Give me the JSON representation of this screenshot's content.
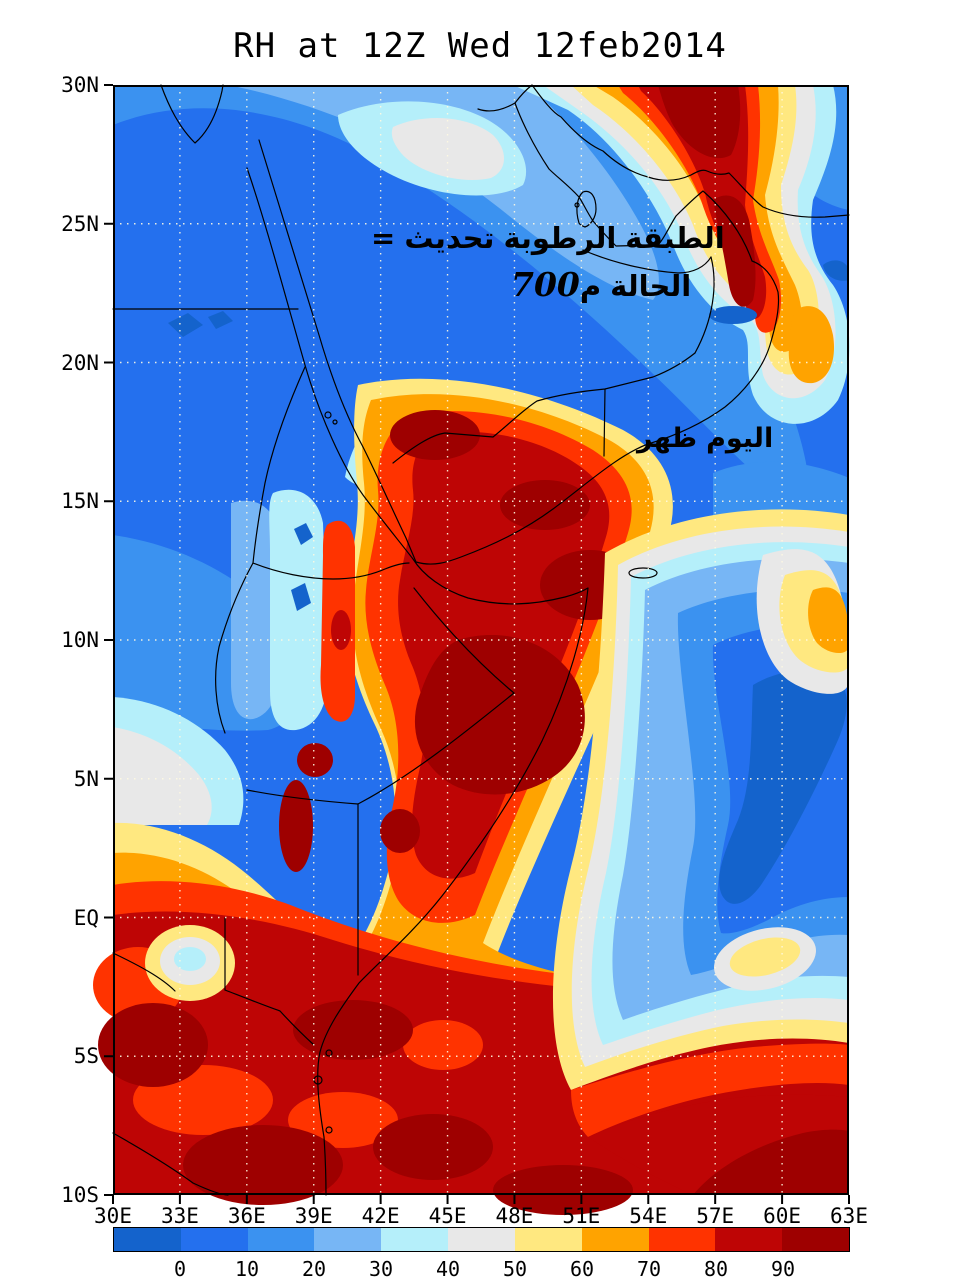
{
  "title": "RH at 12Z Wed 12feb2014",
  "annotations": {
    "line1": {
      "equals": "=",
      "words": [
        "تحديث",
        "الرطوبة",
        "الطبقة"
      ]
    },
    "line2": {
      "number": "700",
      "suffix": "م",
      "word": "الحالة"
    },
    "line3": {
      "words": [
        "ظهر",
        "اليوم"
      ]
    }
  },
  "axes": {
    "lat_labels": [
      "30N",
      "25N",
      "20N",
      "15N",
      "10N",
      "5N",
      "EQ",
      "5S",
      "10S"
    ],
    "lon_labels": [
      "30E",
      "33E",
      "36E",
      "39E",
      "42E",
      "45E",
      "48E",
      "51E",
      "54E",
      "57E",
      "60E",
      "63E"
    ]
  },
  "colorbar": {
    "labels": [
      "0",
      "10",
      "20",
      "30",
      "40",
      "50",
      "60",
      "70",
      "80",
      "90"
    ],
    "colors": [
      "#1463CC",
      "#2470EE",
      "#3B92F0",
      "#77B6F5",
      "#B5EFFA",
      "#E8E8E8",
      "#FFE880",
      "#FFA300",
      "#FF3300",
      "#BE0505",
      "#9E0000"
    ]
  },
  "chart_data": {
    "type": "heatmap",
    "title": "RH at 12Z Wed 12feb2014",
    "variable": "Relative humidity (%) filled contours over NE Africa / Arabian Peninsula / NW Indian Ocean",
    "x_axis": {
      "ticks": [
        "30E",
        "33E",
        "36E",
        "39E",
        "42E",
        "45E",
        "48E",
        "51E",
        "54E",
        "57E",
        "60E",
        "63E"
      ],
      "range_deg_east": [
        30,
        63
      ]
    },
    "y_axis": {
      "ticks": [
        "30N",
        "25N",
        "20N",
        "15N",
        "10N",
        "5N",
        "EQ",
        "5S",
        "10S"
      ],
      "range_deg_north": [
        -10,
        30
      ]
    },
    "contour_levels": [
      0,
      10,
      20,
      30,
      40,
      50,
      60,
      70,
      80,
      90
    ],
    "bins": [
      "<0",
      "0-10",
      "10-20",
      "20-30",
      "30-40",
      "40-50",
      "50-60",
      "60-70",
      "70-80",
      "80-90",
      ">90"
    ],
    "palette": [
      "#1463CC",
      "#2470EE",
      "#3B92F0",
      "#77B6F5",
      "#B5EFFA",
      "#E8E8E8",
      "#FFE880",
      "#FFA300",
      "#FF3300",
      "#BE0505",
      "#9E0000"
    ],
    "legend_position": "bottom horizontal colorbar",
    "grid": "dotted graticule every 3 deg lon / 5 deg lat",
    "features": [
      "RH 0-20 across the north (Egypt, Levant edge, northern Saudi Arabia, 20-30N)",
      "Band of RH 20-50 (light blue/cyan/white) stretching NW-SE over NE Egypt toward the Persian Gulf",
      "RH >90 core band over Iran/Strait of Hormuz region (52-58E, 22-30N) ringed by 60-90",
      "Isolated RH 60-70 pocket near the Gulf of Oman coast (59-61E, 15-18N)",
      "Large RH 70->90 mass over Sudan/Ethiopia/Yemen highlands (36-48E, 18N to 10S)",
      "Narrow RH 70-90 strip along the southern Red Sea coast (39-40E, 11-17N)",
      "Dry RH 0-10 tongue (with <0 bin streak) over NW Indian Ocean east of Somalia (54-61E, 8N-5S)",
      "RH 50-60 pocket inside the oceanic dry zone near 56-58E, 1-2S",
      "RH 80->90 across the entire south (Tanzania/Kenya/SW Indian Ocean, south of 3S)",
      "Small RH 30-50 bullseye near Lake Victoria region (32-34E, 1-3S)"
    ]
  }
}
